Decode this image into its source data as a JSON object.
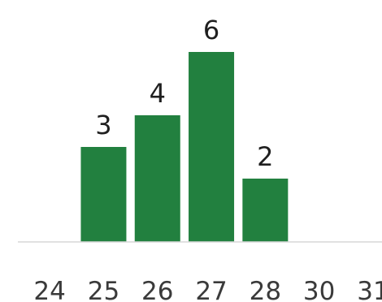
{
  "chart_data": {
    "type": "bar",
    "categories": [
      "24",
      "25",
      "26",
      "27",
      "28",
      "30",
      "31"
    ],
    "values": [
      0,
      3,
      4,
      6,
      2,
      0,
      0
    ],
    "title": "",
    "xlabel": "",
    "ylabel": "",
    "ylim": [
      0,
      6
    ],
    "grid": false,
    "legend": "none",
    "data_labels": true,
    "colors": {
      "bar": "#22803f",
      "baseline": "#d7d7d7",
      "label": "#1f1f1f",
      "tick": "#3a3a3a"
    }
  }
}
